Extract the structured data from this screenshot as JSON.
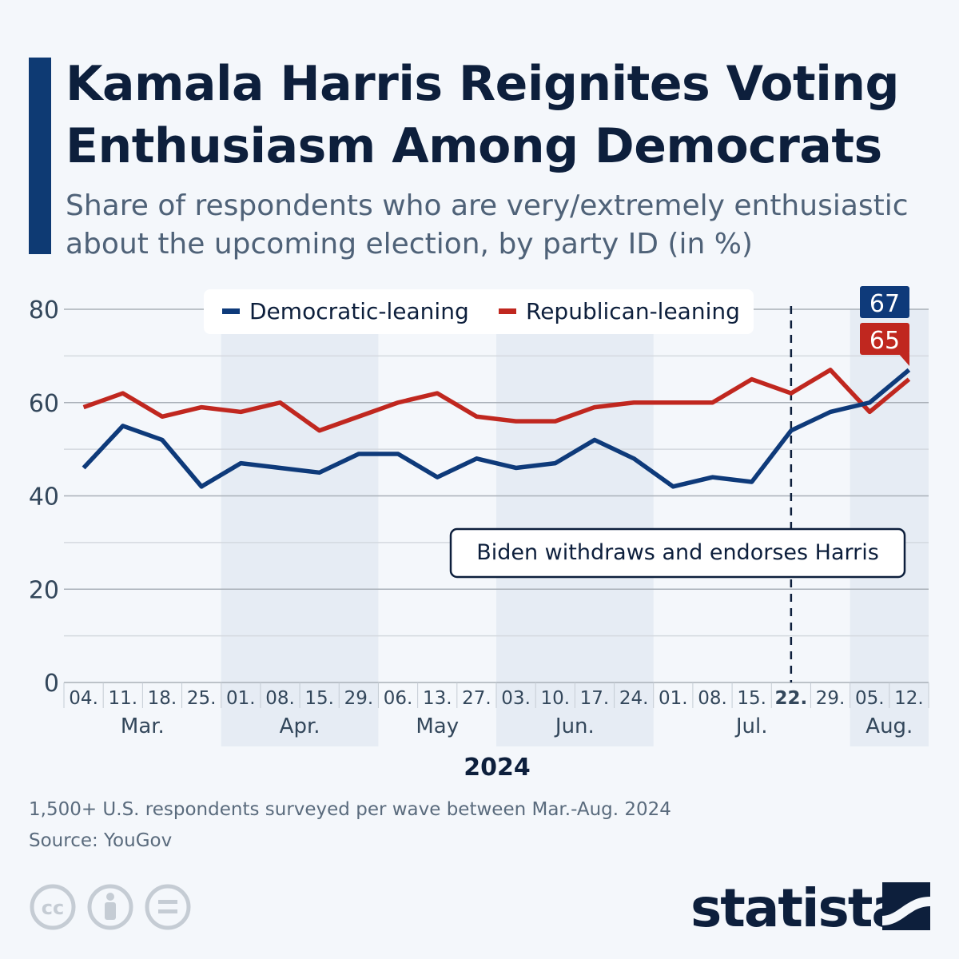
{
  "title": "Kamala Harris Reignites Voting Enthusiasm Among Democrats",
  "subtitle": "Share of respondents who are very/extremely enthusiastic about the upcoming election, by party ID (in %)",
  "footer": {
    "note": "1,500+ U.S. respondents surveyed per wave between Mar.-Aug. 2024",
    "source": "Source: YouGov"
  },
  "brand": "statista",
  "license_icons": [
    "cc-icon",
    "attribution-icon",
    "no-derivatives-icon"
  ],
  "colors": {
    "democratic": "#0e3a7a",
    "republican": "#c0271f",
    "shade": "#e6ecf4"
  },
  "chart_data": {
    "type": "line",
    "title": "Kamala Harris Reignites Voting Enthusiasm Among Democrats",
    "x": [
      "04.",
      "11.",
      "18.",
      "25.",
      "01.",
      "08.",
      "15.",
      "29.",
      "06.",
      "13.",
      "27.",
      "03.",
      "10.",
      "17.",
      "24.",
      "01.",
      "08.",
      "15.",
      "22.",
      "29.",
      "05.",
      "12."
    ],
    "months": [
      {
        "label": "Mar.",
        "start": 0,
        "end": 3,
        "shaded": false
      },
      {
        "label": "Apr.",
        "start": 4,
        "end": 7,
        "shaded": true
      },
      {
        "label": "May",
        "start": 8,
        "end": 10,
        "shaded": false
      },
      {
        "label": "Jun.",
        "start": 11,
        "end": 14,
        "shaded": true
      },
      {
        "label": "Jul.",
        "start": 15,
        "end": 19,
        "shaded": false
      },
      {
        "label": "Aug.",
        "start": 20,
        "end": 21,
        "shaded": true
      }
    ],
    "year_label": "2024",
    "bold_tick": 18,
    "series": [
      {
        "name": "Democratic-leaning",
        "color": "#0e3a7a",
        "values": [
          46,
          55,
          52,
          42,
          47,
          46,
          45,
          49,
          49,
          44,
          48,
          46,
          47,
          52,
          48,
          42,
          44,
          43,
          54,
          58,
          60,
          67
        ]
      },
      {
        "name": "Republican-leaning",
        "color": "#c0271f",
        "values": [
          59,
          62,
          57,
          59,
          58,
          60,
          54,
          57,
          60,
          62,
          57,
          56,
          56,
          59,
          60,
          60,
          60,
          65,
          62,
          67,
          58,
          65
        ]
      }
    ],
    "end_labels": [
      "67",
      "65"
    ],
    "ylim": [
      0,
      80
    ],
    "yticks": [
      0,
      20,
      40,
      60,
      80
    ],
    "grid": true,
    "legend": "top-center",
    "annotation": {
      "text": "Biden withdraws and endorses Harris",
      "at_index": 18
    }
  }
}
